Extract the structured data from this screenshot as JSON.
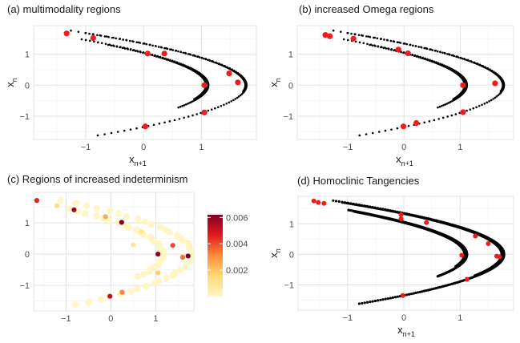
{
  "chart_data": [
    {
      "id": "a",
      "type": "scatter",
      "title": "(a) multimodality regions",
      "xlabel": "x",
      "xlabel_sub": "n+1",
      "ylabel": "x",
      "ylabel_sub": "n",
      "xlim": [
        -1.9,
        1.95
      ],
      "ylim": [
        -1.75,
        1.92
      ],
      "xticks": [
        -1,
        0,
        1
      ],
      "yticks": [
        -1,
        0,
        1
      ],
      "xtick_labels": [
        "−1",
        "0",
        "1"
      ],
      "ytick_labels": [
        "−1",
        "0",
        "1"
      ],
      "highlight_color": "#ee1c1c",
      "highlights": [
        [
          -1.33,
          1.67
        ],
        [
          -0.87,
          1.52
        ],
        [
          0.07,
          1.02
        ],
        [
          0.36,
          1.02
        ],
        [
          1.48,
          0.38
        ],
        [
          1.63,
          0.09
        ],
        [
          1.05,
          0.0
        ],
        [
          1.05,
          -0.88
        ],
        [
          0.03,
          -1.33
        ]
      ]
    },
    {
      "id": "b",
      "type": "scatter",
      "title": "(b) increased Omega regions",
      "xlabel": "x",
      "xlabel_sub": "n+1",
      "ylabel": "x",
      "ylabel_sub": "n",
      "xlim": [
        -1.9,
        1.95
      ],
      "ylim": [
        -1.75,
        1.92
      ],
      "xticks": [
        -1,
        0,
        1
      ],
      "yticks": [
        -1,
        0,
        1
      ],
      "xtick_labels": [
        "−1",
        "0",
        "1"
      ],
      "ytick_labels": [
        "−1",
        "0",
        "1"
      ],
      "highlight_color": "#ee1c1c",
      "highlights": [
        [
          -1.4,
          1.62
        ],
        [
          -1.32,
          1.58
        ],
        [
          -0.9,
          1.5
        ],
        [
          -0.1,
          1.15
        ],
        [
          0.07,
          1.03
        ],
        [
          1.62,
          0.06
        ],
        [
          1.05,
          0.0
        ],
        [
          1.05,
          -0.87
        ],
        [
          0.22,
          -1.22
        ],
        [
          -0.01,
          -1.33
        ]
      ]
    },
    {
      "id": "c",
      "type": "scatter",
      "title": "(c) Regions of increased indeterminism",
      "xlabel": "",
      "ylabel": "",
      "xlim": [
        -1.72,
        1.85
      ],
      "ylim": [
        -1.82,
        1.98
      ],
      "xticks": [
        -1,
        0,
        1
      ],
      "yticks": [
        -1,
        0,
        1
      ],
      "xtick_labels": [
        "−1",
        "0",
        "1"
      ],
      "ytick_labels": [
        "−1",
        "0",
        "1"
      ],
      "colorbar": {
        "min": 0.0,
        "max": 0.0062,
        "ticks": [
          0.002,
          0.004,
          0.006
        ],
        "tick_labels": [
          "0.002",
          "0.004",
          "0.006"
        ],
        "colors": [
          "#fff5c3",
          "#fed976",
          "#fd8d3c",
          "#e31a1c",
          "#800026"
        ]
      },
      "highlights": [
        [
          -1.65,
          1.72,
          0.0045
        ],
        [
          -0.82,
          1.42,
          0.0058
        ],
        [
          -0.12,
          1.2,
          0.0025
        ],
        [
          0.24,
          1.02,
          0.006
        ],
        [
          0.68,
          0.72,
          0.0008
        ],
        [
          1.05,
          0.0,
          0.006
        ],
        [
          1.38,
          0.28,
          0.004
        ],
        [
          1.6,
          -0.1,
          0.0035
        ],
        [
          1.72,
          -0.06,
          0.0062
        ],
        [
          1.05,
          -0.6,
          0.0018
        ],
        [
          0.25,
          -1.22,
          0.0032
        ],
        [
          -0.02,
          -1.35,
          0.0052
        ],
        [
          -1.2,
          1.55,
          0.0012
        ],
        [
          0.5,
          0.3,
          0.0008
        ]
      ]
    },
    {
      "id": "d",
      "type": "scatter",
      "title": "(d) Homoclinic Tangencies",
      "xlabel": "x",
      "xlabel_sub": "n+1",
      "ylabel": "x",
      "ylabel_sub": "n",
      "xlim": [
        -1.88,
        1.95
      ],
      "ylim": [
        -1.83,
        1.9
      ],
      "xticks": [
        -1,
        0,
        1
      ],
      "yticks": [
        -1,
        0,
        1
      ],
      "xtick_labels": [
        "−1",
        "0",
        "1"
      ],
      "ytick_labels": [
        "−1",
        "0",
        "1"
      ],
      "highlight_color": "#ee1c1c",
      "highlights": [
        [
          -1.6,
          1.75
        ],
        [
          -1.52,
          1.7
        ],
        [
          -1.42,
          1.67
        ],
        [
          -0.05,
          1.3
        ],
        [
          -0.05,
          1.16
        ],
        [
          0.4,
          1.04
        ],
        [
          1.27,
          0.6
        ],
        [
          1.5,
          0.35
        ],
        [
          1.65,
          -0.06
        ],
        [
          1.7,
          -0.08
        ],
        [
          1.03,
          -0.03
        ],
        [
          1.12,
          -0.82
        ],
        [
          -0.02,
          -1.35
        ]
      ]
    }
  ]
}
